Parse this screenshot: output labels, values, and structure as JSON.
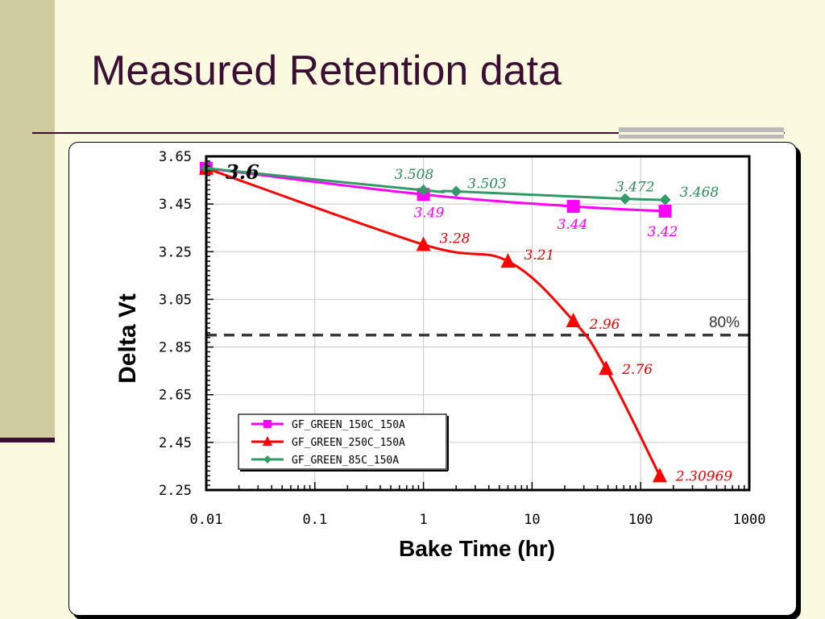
{
  "slide": {
    "title": "Measured Retention data"
  },
  "chart_data": {
    "type": "line",
    "xscale": "log",
    "xlim": [
      0.01,
      1000
    ],
    "ylim": [
      2.25,
      3.65
    ],
    "xticks": [
      0.01,
      0.1,
      1,
      10,
      100,
      1000
    ],
    "xtick_labels": [
      "0.01",
      "0.1",
      "1",
      "10",
      "100",
      "1000"
    ],
    "yticks": [
      2.25,
      2.45,
      2.65,
      2.85,
      3.05,
      3.25,
      3.45,
      3.65
    ],
    "ytick_labels": [
      "2.25",
      "2.45",
      "2.65",
      "2.85",
      "3.05",
      "3.25",
      "3.45",
      "3.65"
    ],
    "xlabel": "Bake Time (hr)",
    "ylabel": "Delta Vt",
    "grid": true,
    "legend_position": "bottom-left",
    "series": [
      {
        "name": "GF_GREEN_150C_150A",
        "color": "#ff00ff",
        "marker": "square",
        "x": [
          0.01,
          1,
          24,
          168
        ],
        "y": [
          3.6,
          3.49,
          3.44,
          3.42
        ],
        "labels": [
          "",
          "3.49",
          "3.44",
          "3.42"
        ]
      },
      {
        "name": "GF_GREEN_250C_150A",
        "color": "#ff0000",
        "marker": "triangle",
        "x": [
          0.01,
          1,
          6,
          24,
          48,
          150
        ],
        "y": [
          3.6,
          3.28,
          3.21,
          2.96,
          2.76,
          2.30969
        ],
        "labels": [
          "",
          "3.28",
          "3.21",
          "2.96",
          "2.76",
          "2.30969"
        ]
      },
      {
        "name": "GF_GREEN_85C_150A",
        "color": "#339966",
        "marker": "diamond",
        "x": [
          0.01,
          1,
          2,
          72,
          168
        ],
        "y": [
          3.6,
          3.508,
          3.503,
          3.472,
          3.468
        ],
        "labels": [
          "",
          "3.508",
          "3.503",
          "3.472",
          "3.468"
        ]
      }
    ],
    "reference_line": {
      "y": 2.9,
      "label": "80%",
      "style": "dashed"
    },
    "annotations": [
      {
        "text": "3.6"
      }
    ]
  }
}
